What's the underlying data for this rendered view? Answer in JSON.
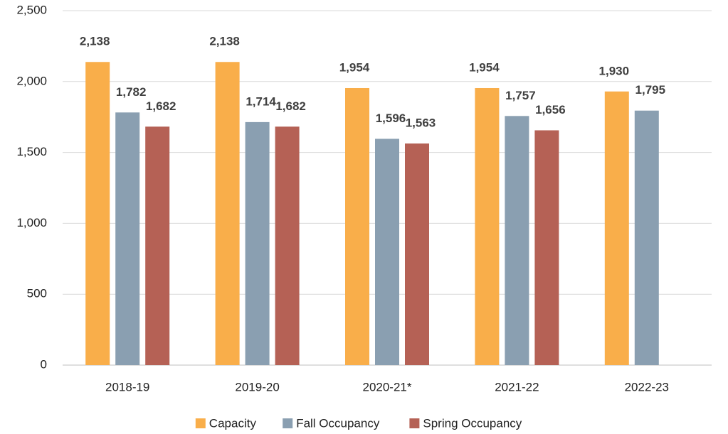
{
  "chart_data": {
    "type": "bar",
    "categories": [
      "2018-19",
      "2019-20",
      "2020-21*",
      "2021-22",
      "2022-23"
    ],
    "series": [
      {
        "name": "Capacity",
        "color": "#f9ae4a",
        "values": [
          2138,
          2138,
          1954,
          1954,
          1930
        ],
        "value_labels": [
          "2,138",
          "2,138",
          "1,954",
          "1,954",
          "1,930"
        ]
      },
      {
        "name": "Fall Occupancy",
        "color": "#8a9fb1",
        "values": [
          1782,
          1714,
          1596,
          1757,
          1795
        ],
        "value_labels": [
          "1,782",
          "1,714",
          "1,596",
          "1,757",
          "1,795"
        ]
      },
      {
        "name": "Spring Occupancy",
        "color": "#b56155",
        "values": [
          1682,
          1682,
          1563,
          1656,
          null
        ],
        "value_labels": [
          "1,682",
          "1,682",
          "1,563",
          "1,656",
          null
        ]
      }
    ],
    "ylim": [
      0,
      2500
    ],
    "yticks": [
      0,
      500,
      {
        "value": 1000,
        "label": "1,000"
      },
      {
        "value": 1500,
        "label": "1,500"
      },
      {
        "value": 2000,
        "label": "2,000"
      },
      {
        "value": 2500,
        "label": "2,500"
      }
    ],
    "grid": true,
    "legend": "bottom"
  }
}
